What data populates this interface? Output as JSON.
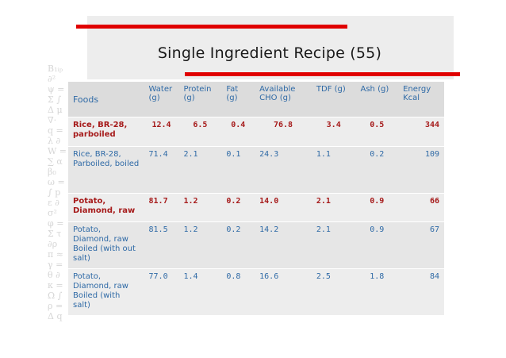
{
  "slide": {
    "title": "Single Ingredient Recipe (55)",
    "colors": {
      "accent_red": "#e00000",
      "header_blue": "#2f6aa6",
      "row_red": "#a61b1b",
      "band_gray": "#ededed"
    }
  },
  "table": {
    "headers": {
      "foods": "Foods",
      "water": "Water (g)",
      "protein": "Protein (g)",
      "fat": "Fat (g)",
      "cho": "Available CHO (g)",
      "tdf": "TDF (g)",
      "ash": "Ash (g)",
      "energy": "Energy Kcal"
    },
    "rows": [
      {
        "food": "Rice, BR-28, parboiled",
        "water": "12.4",
        "protein": "6.5",
        "fat": "0.4",
        "cho": "76.8",
        "tdf": "3.4",
        "ash": "0.5",
        "energy": "344"
      },
      {
        "food": "Rice, BR-28, Parboiled, boiled",
        "water": "71.4",
        "protein": "2.1",
        "fat": "0.1",
        "cho": "24.3",
        "tdf": "1.1",
        "ash": "0.2",
        "energy": "109"
      },
      {
        "food": "Potato, Diamond, raw",
        "water": "81.7",
        "protein": "1.2",
        "fat": "0.2",
        "cho": "14.0",
        "tdf": "2.1",
        "ash": "0.9",
        "energy": "66"
      },
      {
        "food": "Potato, Diamond, raw Boiled (with out salt)",
        "water": "81.5",
        "protein": "1.2",
        "fat": "0.2",
        "cho": "14.2",
        "tdf": "2.1",
        "ash": "0.9",
        "energy": "67"
      },
      {
        "food": "Potato, Diamond, raw Boiled (with salt)",
        "water": "77.0",
        "protein": "1.4",
        "fat": "0.8",
        "cho": "16.6",
        "tdf": "2.5",
        "ash": "1.8",
        "energy": "84"
      }
    ]
  }
}
